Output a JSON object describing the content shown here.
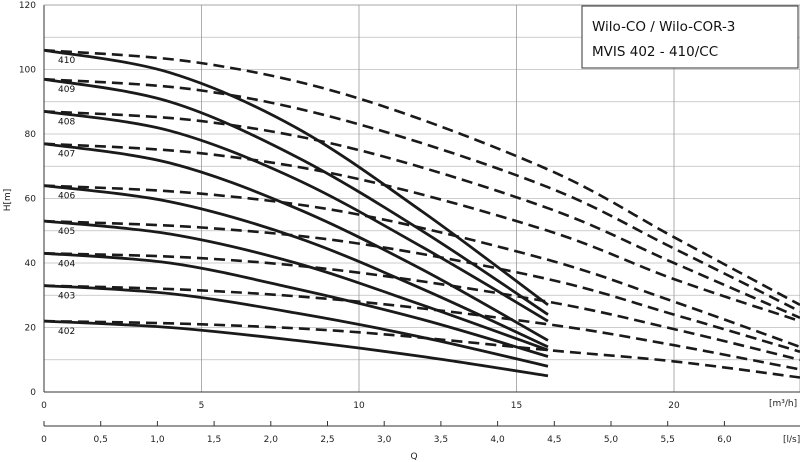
{
  "chart_data": {
    "type": "line",
    "title_lines": [
      "Wilo-CO / Wilo-COR-3",
      "MVIS 402 - 410/CC"
    ],
    "xlabel": "Q",
    "ylabel": "H[m]",
    "x_unit_primary": "[m³/h]",
    "x_unit_secondary": "[l/s]",
    "xlim": [
      0,
      24
    ],
    "ylim": [
      0,
      120
    ],
    "x_ticks": [
      "0",
      "5",
      "10",
      "15",
      "20"
    ],
    "x_tick_values": [
      0,
      5,
      10,
      15,
      20
    ],
    "x2_ticks": [
      "0",
      "0,5",
      "1,0",
      "1,5",
      "2,0",
      "2,5",
      "3,0",
      "3,5",
      "4,0",
      "4,5",
      "5,0",
      "5,5",
      "6,0"
    ],
    "x2_tick_values": [
      0,
      0.5,
      1.0,
      1.5,
      2.0,
      2.5,
      3.0,
      3.5,
      4.0,
      4.5,
      5.0,
      5.5,
      6.0
    ],
    "y_ticks": [
      "0",
      "20",
      "40",
      "60",
      "80",
      "100",
      "120"
    ],
    "y_tick_values": [
      0,
      20,
      40,
      60,
      80,
      100,
      120
    ],
    "grid": true,
    "series": [
      {
        "name": "402",
        "solid": {
          "x": [
            0,
            4,
            8,
            12,
            16
          ],
          "y": [
            22,
            20,
            16,
            11,
            5
          ]
        },
        "dashed": {
          "x": [
            0,
            5,
            10,
            16,
            20,
            24
          ],
          "y": [
            22,
            21,
            18.5,
            13,
            9.5,
            4.5
          ]
        }
      },
      {
        "name": "403",
        "solid": {
          "x": [
            0,
            4,
            8,
            12,
            16
          ],
          "y": [
            33,
            30.5,
            24.5,
            17,
            8
          ]
        },
        "dashed": {
          "x": [
            0,
            5,
            10,
            16,
            20,
            24
          ],
          "y": [
            33,
            31.5,
            28,
            21,
            14.5,
            7
          ]
        }
      },
      {
        "name": "404",
        "solid": {
          "x": [
            0,
            4,
            8,
            12,
            16
          ],
          "y": [
            43,
            40,
            32,
            22.5,
            11
          ]
        },
        "dashed": {
          "x": [
            0,
            5,
            10,
            16,
            20,
            24
          ],
          "y": [
            43,
            41.5,
            37,
            28,
            19.5,
            10
          ]
        }
      },
      {
        "name": "405",
        "solid": {
          "x": [
            0,
            4,
            8,
            12,
            16
          ],
          "y": [
            53,
            49,
            40,
            27,
            13
          ]
        },
        "dashed": {
          "x": [
            0,
            5,
            10,
            16,
            20,
            24
          ],
          "y": [
            53,
            51,
            46,
            35,
            24,
            12.5
          ]
        }
      },
      {
        "name": "406",
        "solid": {
          "x": [
            0,
            4,
            8,
            12,
            16
          ],
          "y": [
            64,
            59,
            48,
            32,
            14
          ]
        },
        "dashed": {
          "x": [
            0,
            5,
            10,
            16,
            20,
            24
          ],
          "y": [
            64,
            61.5,
            55,
            41,
            28,
            14
          ]
        }
      },
      {
        "name": "407",
        "solid": {
          "x": [
            0,
            4,
            8,
            12,
            16
          ],
          "y": [
            77,
            71,
            57,
            38,
            16
          ]
        },
        "dashed": {
          "x": [
            0,
            5,
            10,
            16,
            20,
            24
          ],
          "y": [
            77,
            74,
            66,
            50,
            35,
            22
          ]
        }
      },
      {
        "name": "408",
        "solid": {
          "x": [
            0,
            4,
            8,
            12,
            16
          ],
          "y": [
            87,
            81,
            66,
            45,
            22
          ]
        },
        "dashed": {
          "x": [
            0,
            5,
            10,
            16,
            20,
            24
          ],
          "y": [
            87,
            84,
            75,
            57,
            40,
            23
          ]
        }
      },
      {
        "name": "409",
        "solid": {
          "x": [
            0,
            4,
            8,
            12,
            16
          ],
          "y": [
            97,
            90,
            73,
            50,
            24
          ]
        },
        "dashed": {
          "x": [
            0,
            5,
            10,
            16,
            20,
            24
          ],
          "y": [
            97,
            93.5,
            83,
            63.5,
            44.5,
            25
          ]
        }
      },
      {
        "name": "410",
        "solid": {
          "x": [
            0,
            4,
            8,
            12,
            16
          ],
          "y": [
            106,
            99,
            82,
            56,
            27
          ]
        },
        "dashed": {
          "x": [
            0,
            5,
            10,
            16,
            20,
            24
          ],
          "y": [
            106,
            102,
            91,
            69,
            48,
            27
          ]
        }
      }
    ]
  }
}
